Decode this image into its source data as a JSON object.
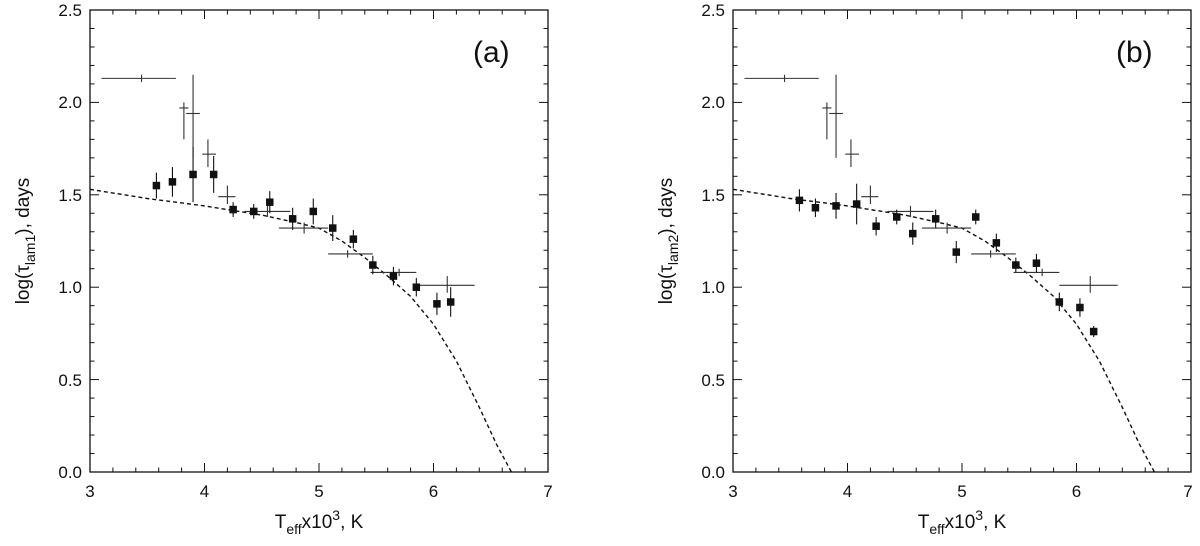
{
  "chart_data": [
    {
      "type": "scatter",
      "panel_label": "(a)",
      "xlabel": {
        "base": "T",
        "sub": "eff",
        "mid": "x10",
        "sup": "3",
        "tail": ", K"
      },
      "ylabel": {
        "pre": "log(",
        "greek": "τ",
        "sub": "lam1",
        "post": "),  days"
      },
      "xlim": [
        3,
        7
      ],
      "ylim": [
        0.0,
        2.5
      ],
      "xticks": [
        3,
        4,
        5,
        6,
        7
      ],
      "yticks": [
        "0.0",
        "0.5",
        "1.0",
        "1.5",
        "2.0",
        "2.5"
      ],
      "series": [
        {
          "name": "filled squares with error bars",
          "points": [
            {
              "x": 3.58,
              "y": 1.55,
              "err": 0.07
            },
            {
              "x": 3.72,
              "y": 1.57,
              "err": 0.08
            },
            {
              "x": 3.9,
              "y": 1.61,
              "err": 0.15
            },
            {
              "x": 4.08,
              "y": 1.61,
              "err": 0.1
            },
            {
              "x": 4.25,
              "y": 1.42,
              "err": 0.04
            },
            {
              "x": 4.43,
              "y": 1.41,
              "err": 0.04
            },
            {
              "x": 4.57,
              "y": 1.46,
              "err": 0.06
            },
            {
              "x": 4.77,
              "y": 1.37,
              "err": 0.06
            },
            {
              "x": 4.95,
              "y": 1.41,
              "err": 0.07
            },
            {
              "x": 5.12,
              "y": 1.32,
              "err": 0.07
            },
            {
              "x": 5.3,
              "y": 1.26,
              "err": 0.05
            },
            {
              "x": 5.47,
              "y": 1.12,
              "err": 0.05
            },
            {
              "x": 5.65,
              "y": 1.06,
              "err": 0.05
            },
            {
              "x": 5.85,
              "y": 1.0,
              "err": 0.05
            },
            {
              "x": 6.03,
              "y": 0.91,
              "err": 0.06
            },
            {
              "x": 6.15,
              "y": 0.92,
              "err": 0.08
            }
          ]
        },
        {
          "name": "crosses",
          "points": [
            {
              "x": 3.45,
              "y": 2.13,
              "xlo": 3.1,
              "xhi": 3.75,
              "ylo": 2.11,
              "yhi": 2.15
            },
            {
              "x": 3.82,
              "y": 1.97,
              "xlo": 3.78,
              "xhi": 3.86,
              "ylo": 1.8,
              "yhi": 2.0
            },
            {
              "x": 3.9,
              "y": 1.94,
              "xlo": 3.84,
              "xhi": 3.96,
              "ylo": 1.7,
              "yhi": 2.15
            },
            {
              "x": 4.03,
              "y": 1.72,
              "xlo": 3.98,
              "xhi": 4.1,
              "ylo": 1.65,
              "yhi": 1.8
            },
            {
              "x": 4.2,
              "y": 1.49,
              "xlo": 4.12,
              "xhi": 4.27,
              "ylo": 1.45,
              "yhi": 1.55
            },
            {
              "x": 4.55,
              "y": 1.41,
              "xlo": 4.35,
              "xhi": 4.75,
              "ylo": 1.38,
              "yhi": 1.44
            },
            {
              "x": 4.87,
              "y": 1.32,
              "xlo": 4.65,
              "xhi": 5.08,
              "ylo": 1.29,
              "yhi": 1.35
            },
            {
              "x": 5.25,
              "y": 1.18,
              "xlo": 5.08,
              "xhi": 5.47,
              "ylo": 1.16,
              "yhi": 1.2
            },
            {
              "x": 5.7,
              "y": 1.08,
              "xlo": 5.45,
              "xhi": 5.85,
              "ylo": 1.06,
              "yhi": 1.1
            },
            {
              "x": 6.12,
              "y": 1.01,
              "xlo": 5.85,
              "xhi": 6.36,
              "ylo": 0.97,
              "yhi": 1.06
            }
          ]
        }
      ],
      "fit_curve": {
        "name": "dashed model curve",
        "x": [
          3.0,
          3.5,
          4.0,
          4.5,
          4.8,
          5.0,
          5.2,
          5.4,
          5.6,
          5.8,
          6.0,
          6.2,
          6.4,
          6.55,
          6.68
        ],
        "y": [
          1.53,
          1.48,
          1.44,
          1.39,
          1.35,
          1.32,
          1.25,
          1.16,
          1.06,
          0.95,
          0.8,
          0.6,
          0.35,
          0.15,
          0.0
        ]
      }
    },
    {
      "type": "scatter",
      "panel_label": "(b)",
      "xlabel": {
        "base": "T",
        "sub": "eff",
        "mid": "x10",
        "sup": "3",
        "tail": ", K"
      },
      "ylabel": {
        "pre": "log(",
        "greek": "τ",
        "sub": "lam2",
        "post": "),  days"
      },
      "xlim": [
        3,
        7
      ],
      "ylim": [
        0.0,
        2.5
      ],
      "xticks": [
        3,
        4,
        5,
        6,
        7
      ],
      "yticks": [
        "0.0",
        "0.5",
        "1.0",
        "1.5",
        "2.0",
        "2.5"
      ],
      "series": [
        {
          "name": "filled squares with error bars",
          "points": [
            {
              "x": 3.58,
              "y": 1.47,
              "err": 0.06
            },
            {
              "x": 3.72,
              "y": 1.43,
              "err": 0.05
            },
            {
              "x": 3.9,
              "y": 1.44,
              "err": 0.07
            },
            {
              "x": 4.08,
              "y": 1.45,
              "err": 0.11
            },
            {
              "x": 4.25,
              "y": 1.33,
              "err": 0.05
            },
            {
              "x": 4.43,
              "y": 1.38,
              "err": 0.04
            },
            {
              "x": 4.57,
              "y": 1.29,
              "err": 0.06
            },
            {
              "x": 4.77,
              "y": 1.37,
              "err": 0.05
            },
            {
              "x": 4.95,
              "y": 1.19,
              "err": 0.06
            },
            {
              "x": 5.12,
              "y": 1.38,
              "err": 0.04
            },
            {
              "x": 5.3,
              "y": 1.24,
              "err": 0.05
            },
            {
              "x": 5.47,
              "y": 1.12,
              "err": 0.04
            },
            {
              "x": 5.65,
              "y": 1.13,
              "err": 0.05
            },
            {
              "x": 5.85,
              "y": 0.92,
              "err": 0.05
            },
            {
              "x": 6.03,
              "y": 0.89,
              "err": 0.05
            },
            {
              "x": 6.15,
              "y": 0.76,
              "err": 0.03
            }
          ]
        },
        {
          "name": "crosses",
          "points": [
            {
              "x": 3.45,
              "y": 2.13,
              "xlo": 3.1,
              "xhi": 3.75,
              "ylo": 2.11,
              "yhi": 2.15
            },
            {
              "x": 3.82,
              "y": 1.97,
              "xlo": 3.78,
              "xhi": 3.86,
              "ylo": 1.8,
              "yhi": 2.0
            },
            {
              "x": 3.9,
              "y": 1.94,
              "xlo": 3.84,
              "xhi": 3.96,
              "ylo": 1.7,
              "yhi": 2.15
            },
            {
              "x": 4.03,
              "y": 1.72,
              "xlo": 3.98,
              "xhi": 4.1,
              "ylo": 1.65,
              "yhi": 1.8
            },
            {
              "x": 4.2,
              "y": 1.49,
              "xlo": 4.12,
              "xhi": 4.27,
              "ylo": 1.45,
              "yhi": 1.55
            },
            {
              "x": 4.55,
              "y": 1.41,
              "xlo": 4.35,
              "xhi": 4.75,
              "ylo": 1.38,
              "yhi": 1.44
            },
            {
              "x": 4.87,
              "y": 1.32,
              "xlo": 4.65,
              "xhi": 5.08,
              "ylo": 1.29,
              "yhi": 1.35
            },
            {
              "x": 5.25,
              "y": 1.18,
              "xlo": 5.08,
              "xhi": 5.47,
              "ylo": 1.16,
              "yhi": 1.2
            },
            {
              "x": 5.7,
              "y": 1.08,
              "xlo": 5.45,
              "xhi": 5.85,
              "ylo": 1.06,
              "yhi": 1.1
            },
            {
              "x": 6.12,
              "y": 1.01,
              "xlo": 5.85,
              "xhi": 6.36,
              "ylo": 0.97,
              "yhi": 1.06
            }
          ]
        }
      ],
      "fit_curve": {
        "name": "dashed model curve",
        "x": [
          3.0,
          3.5,
          4.0,
          4.5,
          4.8,
          5.0,
          5.2,
          5.4,
          5.6,
          5.8,
          6.0,
          6.2,
          6.4,
          6.55,
          6.68
        ],
        "y": [
          1.53,
          1.48,
          1.44,
          1.39,
          1.35,
          1.32,
          1.25,
          1.16,
          1.06,
          0.95,
          0.8,
          0.6,
          0.35,
          0.15,
          0.0
        ]
      }
    }
  ]
}
